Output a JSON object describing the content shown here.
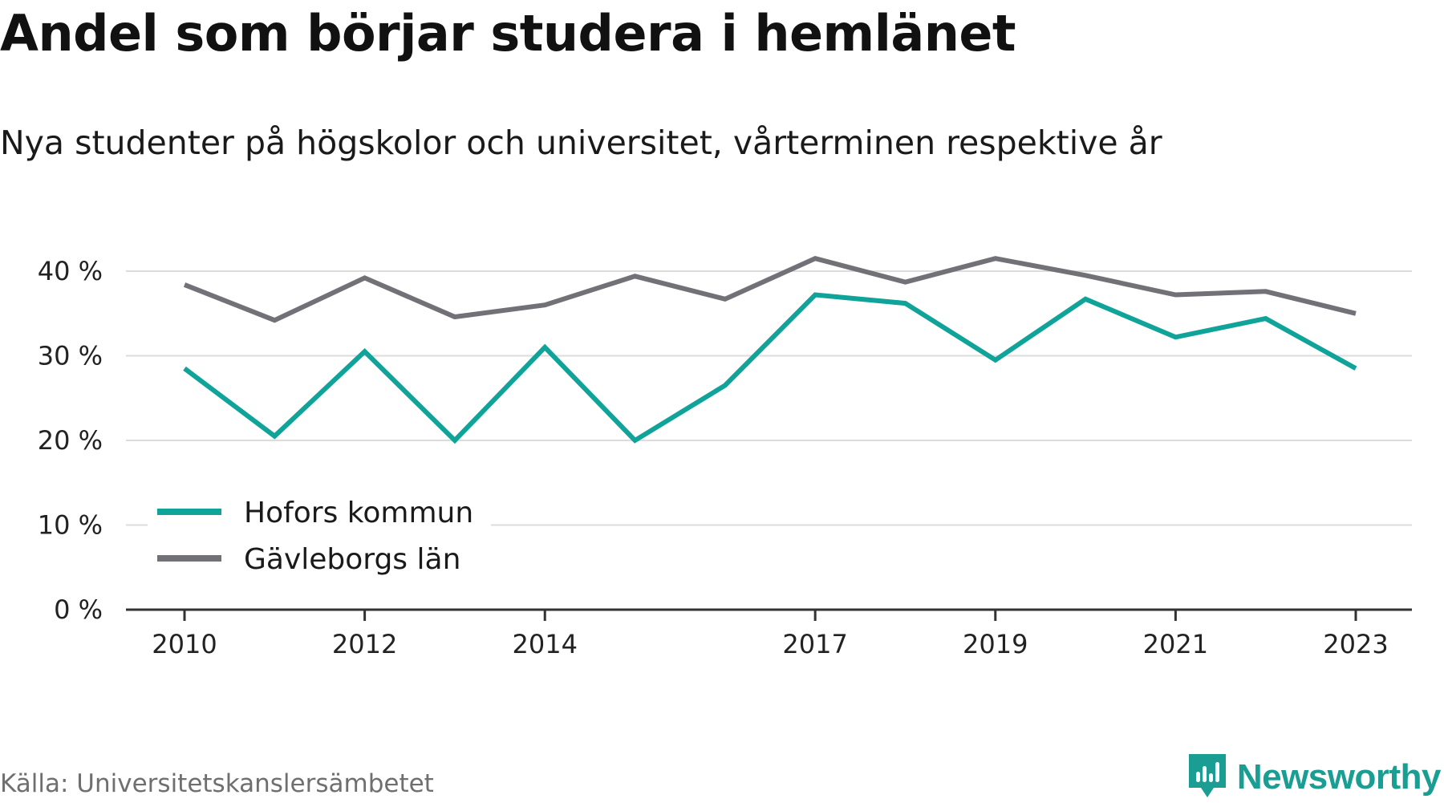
{
  "title": "Andel som börjar studera i hemlänet",
  "subtitle": "Nya studenter på högskolor och universitet, vårterminen respektive år",
  "source": "Källa: Universitetskanslersämbetet",
  "brand": {
    "name": "Newsworthy",
    "icon": "newsworthy-logo-icon",
    "color": "#1a9e93"
  },
  "colors": {
    "hofors": "#0fa39a",
    "gavleborg": "#727177",
    "grid": "#dcdcdc",
    "axis": "#333333"
  },
  "chart_data": {
    "type": "line",
    "title": "Andel som börjar studera i hemlänet",
    "subtitle": "Nya studenter på högskolor och universitet, vårterminen respektive år",
    "xlabel": "",
    "ylabel": "",
    "x": [
      2010,
      2011,
      2012,
      2013,
      2014,
      2015,
      2016,
      2017,
      2018,
      2019,
      2020,
      2021,
      2022,
      2023
    ],
    "x_tick_labels": [
      "2010",
      "2012",
      "2014",
      "2017",
      "2019",
      "2021",
      "2023"
    ],
    "y_ticks": [
      0,
      10,
      20,
      30,
      40
    ],
    "y_tick_labels": [
      "0 %",
      "10 %",
      "20 %",
      "30 %",
      "40 %"
    ],
    "ylim": [
      0,
      40
    ],
    "xlim": [
      2010,
      2023
    ],
    "grid": true,
    "legend_position": "bottom-left",
    "series": [
      {
        "name": "Hofors kommun",
        "color": "#0fa39a",
        "values": [
          28.5,
          20.5,
          30.5,
          20.0,
          31.0,
          20.0,
          26.5,
          37.2,
          36.2,
          29.5,
          36.7,
          32.2,
          34.4,
          28.5
        ]
      },
      {
        "name": "Gävleborgs län",
        "color": "#727177",
        "values": [
          38.4,
          34.2,
          39.2,
          34.6,
          36.0,
          39.4,
          36.7,
          41.5,
          38.7,
          41.5,
          39.5,
          37.2,
          37.6,
          35.0
        ]
      }
    ]
  }
}
